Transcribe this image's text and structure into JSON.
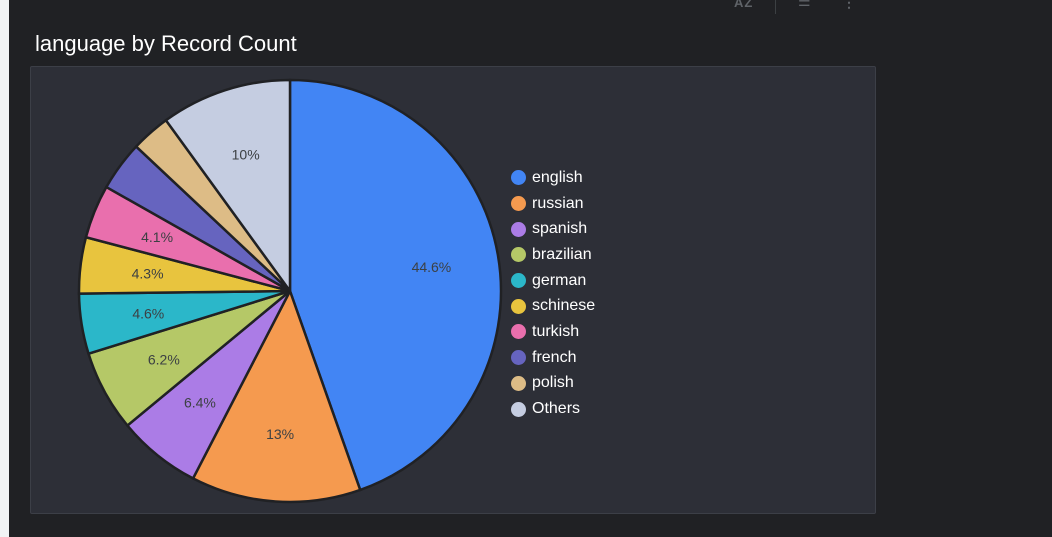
{
  "title": "language by Record Count",
  "toolbar": {
    "sort_label": "AZ",
    "filter_icon": "filter-icon",
    "more_icon": "more-vert-icon"
  },
  "chart_data": {
    "type": "pie",
    "title": "language by Record Count",
    "legend_position": "right",
    "slice_border_color": "#2d2f37",
    "categories": [
      "english",
      "russian",
      "spanish",
      "brazilian",
      "german",
      "schinese",
      "turkish",
      "french",
      "polish",
      "Others"
    ],
    "values": [
      44.6,
      13.0,
      6.4,
      6.2,
      4.6,
      4.3,
      4.1,
      3.8,
      3.0,
      10.0
    ],
    "labels": [
      "44.6%",
      "13%",
      "6.4%",
      "6.2%",
      "4.6%",
      "4.3%",
      "4.1%",
      "",
      "",
      "10%"
    ],
    "colors": [
      "#4285f4",
      "#f59a4f",
      "#ab7ce6",
      "#b5c867",
      "#2bb7c9",
      "#e8c43e",
      "#e96fad",
      "#6664bf",
      "#ddbc86",
      "#c5cde1"
    ]
  }
}
